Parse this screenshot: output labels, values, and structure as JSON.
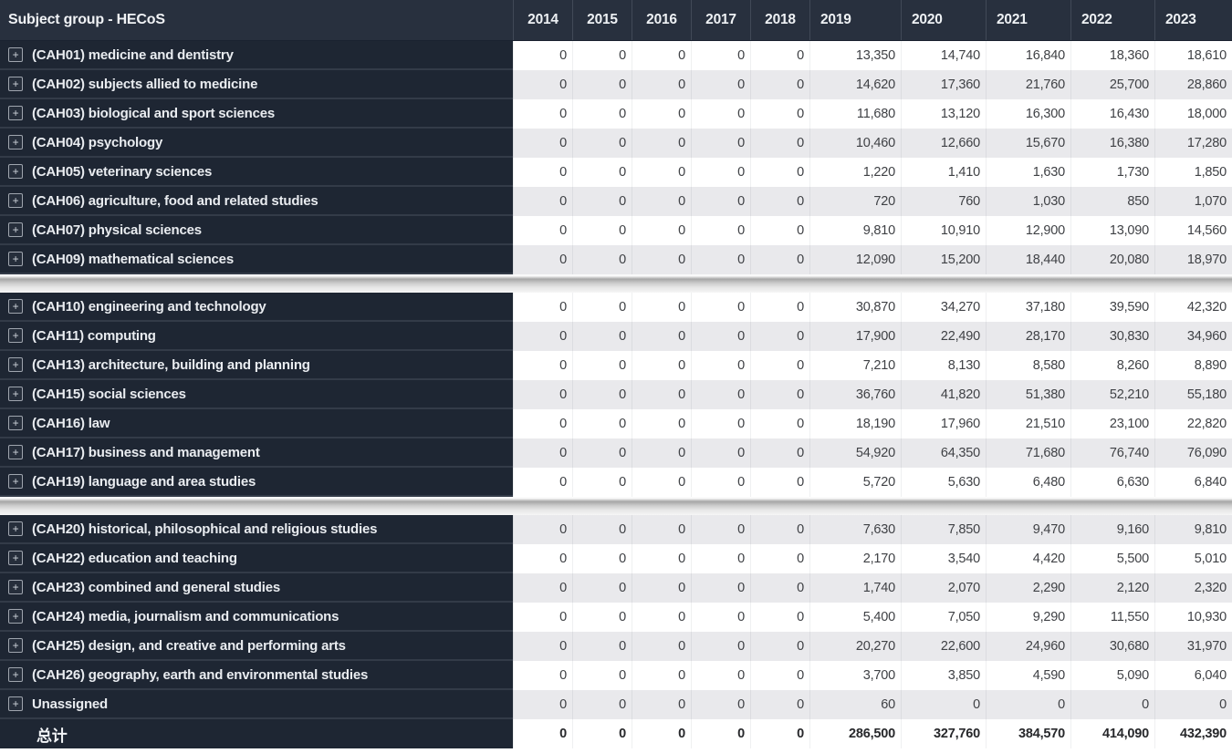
{
  "header": {
    "subject_column_label": "Subject group - HECoS",
    "years": [
      "2014",
      "2015",
      "2016",
      "2017",
      "2018",
      "2019",
      "2020",
      "2021",
      "2022",
      "2023"
    ]
  },
  "sections": [
    {
      "rows": [
        {
          "label": "(CAH01) medicine and dentistry",
          "values": [
            "0",
            "0",
            "0",
            "0",
            "0",
            "13,350",
            "14,740",
            "16,840",
            "18,360",
            "18,610"
          ]
        },
        {
          "label": "(CAH02) subjects allied to medicine",
          "values": [
            "0",
            "0",
            "0",
            "0",
            "0",
            "14,620",
            "17,360",
            "21,760",
            "25,700",
            "28,860"
          ]
        },
        {
          "label": "(CAH03) biological and sport sciences",
          "values": [
            "0",
            "0",
            "0",
            "0",
            "0",
            "11,680",
            "13,120",
            "16,300",
            "16,430",
            "18,000"
          ]
        },
        {
          "label": "(CAH04) psychology",
          "values": [
            "0",
            "0",
            "0",
            "0",
            "0",
            "10,460",
            "12,660",
            "15,670",
            "16,380",
            "17,280"
          ]
        },
        {
          "label": "(CAH05) veterinary sciences",
          "values": [
            "0",
            "0",
            "0",
            "0",
            "0",
            "1,220",
            "1,410",
            "1,630",
            "1,730",
            "1,850"
          ]
        },
        {
          "label": "(CAH06) agriculture, food and related studies",
          "values": [
            "0",
            "0",
            "0",
            "0",
            "0",
            "720",
            "760",
            "1,030",
            "850",
            "1,070"
          ]
        },
        {
          "label": "(CAH07) physical sciences",
          "values": [
            "0",
            "0",
            "0",
            "0",
            "0",
            "9,810",
            "10,910",
            "12,900",
            "13,090",
            "14,560"
          ]
        },
        {
          "label": "(CAH09) mathematical sciences",
          "values": [
            "0",
            "0",
            "0",
            "0",
            "0",
            "12,090",
            "15,200",
            "18,440",
            "20,080",
            "18,970"
          ]
        }
      ]
    },
    {
      "rows": [
        {
          "label": "(CAH10) engineering and technology",
          "values": [
            "0",
            "0",
            "0",
            "0",
            "0",
            "30,870",
            "34,270",
            "37,180",
            "39,590",
            "42,320"
          ]
        },
        {
          "label": "(CAH11) computing",
          "values": [
            "0",
            "0",
            "0",
            "0",
            "0",
            "17,900",
            "22,490",
            "28,170",
            "30,830",
            "34,960"
          ]
        },
        {
          "label": "(CAH13) architecture, building and planning",
          "values": [
            "0",
            "0",
            "0",
            "0",
            "0",
            "7,210",
            "8,130",
            "8,580",
            "8,260",
            "8,890"
          ]
        },
        {
          "label": "(CAH15) social sciences",
          "values": [
            "0",
            "0",
            "0",
            "0",
            "0",
            "36,760",
            "41,820",
            "51,380",
            "52,210",
            "55,180"
          ]
        },
        {
          "label": "(CAH16) law",
          "values": [
            "0",
            "0",
            "0",
            "0",
            "0",
            "18,190",
            "17,960",
            "21,510",
            "23,100",
            "22,820"
          ]
        },
        {
          "label": "(CAH17) business and management",
          "values": [
            "0",
            "0",
            "0",
            "0",
            "0",
            "54,920",
            "64,350",
            "71,680",
            "76,740",
            "76,090"
          ]
        },
        {
          "label": "(CAH19) language and area studies",
          "values": [
            "0",
            "0",
            "0",
            "0",
            "0",
            "5,720",
            "5,630",
            "6,480",
            "6,630",
            "6,840"
          ]
        }
      ]
    },
    {
      "rows": [
        {
          "label": "(CAH20) historical, philosophical and religious studies",
          "values": [
            "0",
            "0",
            "0",
            "0",
            "0",
            "7,630",
            "7,850",
            "9,470",
            "9,160",
            "9,810"
          ]
        },
        {
          "label": "(CAH22) education and teaching",
          "values": [
            "0",
            "0",
            "0",
            "0",
            "0",
            "2,170",
            "3,540",
            "4,420",
            "5,500",
            "5,010"
          ]
        },
        {
          "label": "(CAH23) combined and general studies",
          "values": [
            "0",
            "0",
            "0",
            "0",
            "0",
            "1,740",
            "2,070",
            "2,290",
            "2,120",
            "2,320"
          ]
        },
        {
          "label": "(CAH24) media, journalism and communications",
          "values": [
            "0",
            "0",
            "0",
            "0",
            "0",
            "5,400",
            "7,050",
            "9,290",
            "11,550",
            "10,930"
          ]
        },
        {
          "label": "(CAH25) design, and creative and performing arts",
          "values": [
            "0",
            "0",
            "0",
            "0",
            "0",
            "20,270",
            "22,600",
            "24,960",
            "30,680",
            "31,970"
          ]
        },
        {
          "label": "(CAH26) geography, earth and environmental studies",
          "values": [
            "0",
            "0",
            "0",
            "0",
            "0",
            "3,700",
            "3,850",
            "4,590",
            "5,090",
            "6,040"
          ]
        },
        {
          "label": "Unassigned",
          "values": [
            "0",
            "0",
            "0",
            "0",
            "0",
            "60",
            "0",
            "0",
            "0",
            "0"
          ]
        }
      ]
    }
  ],
  "total": {
    "label": "总计",
    "values": [
      "0",
      "0",
      "0",
      "0",
      "0",
      "286,500",
      "327,760",
      "384,570",
      "414,090",
      "432,390"
    ]
  },
  "icons": {
    "expand": "+"
  },
  "colors": {
    "header_bg": "#28303e",
    "label_bg": "#1e2633",
    "stripe_gray": "#e9e9ec",
    "header_text": "#eef1f4",
    "value_text": "#3f4145"
  }
}
